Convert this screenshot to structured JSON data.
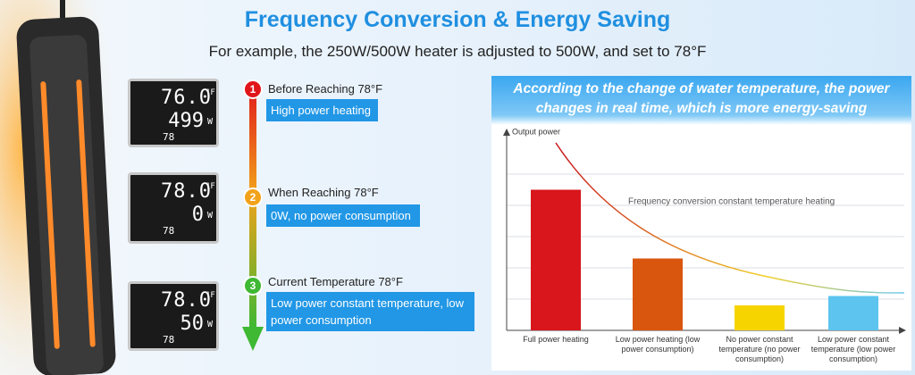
{
  "header": {
    "title": "Frequency Conversion & Energy Saving",
    "subtitle": "For example, the 250W/500W heater is adjusted to 500W, and set to 78°F"
  },
  "units": {
    "temp": "°F",
    "power": "W"
  },
  "steps": [
    {
      "number": "1",
      "label": "Before Reaching 78°F",
      "status": "High power heating",
      "display": {
        "temp": "76.0",
        "power": "499",
        "set": "78"
      }
    },
    {
      "number": "2",
      "label": "When Reaching 78°F",
      "status": "0W, no power consumption",
      "display": {
        "temp": "78.0",
        "power": "0",
        "set": "78"
      }
    },
    {
      "number": "3",
      "label": "Current Temperature 78°F",
      "status": "Low power constant temperature, low power consumption",
      "display": {
        "temp": "78.0",
        "power": "50",
        "set": "78"
      }
    }
  ],
  "chart_data": {
    "type": "bar",
    "title": "According to the change of water temperature, the power changes in real time, which is more energy-saving",
    "y_label": "Output power",
    "annotation": "Frequency conversion constant temperature heating",
    "categories": [
      "Full power heating",
      "Low power heating (low power consumption)",
      "No power constant temperature (no power consumption)",
      "Low power constant temperature (low power consumption)"
    ],
    "series": [
      {
        "name": "Output power",
        "colors": [
          "#d8161b",
          "#d9560f",
          "#f6d400",
          "#5cc4ee"
        ],
        "values": [
          4.5,
          2.3,
          0.8,
          1.1
        ]
      }
    ],
    "ylim": [
      0,
      6.4
    ],
    "yticks": [
      1,
      2,
      3,
      4,
      5
    ],
    "grid": true
  }
}
